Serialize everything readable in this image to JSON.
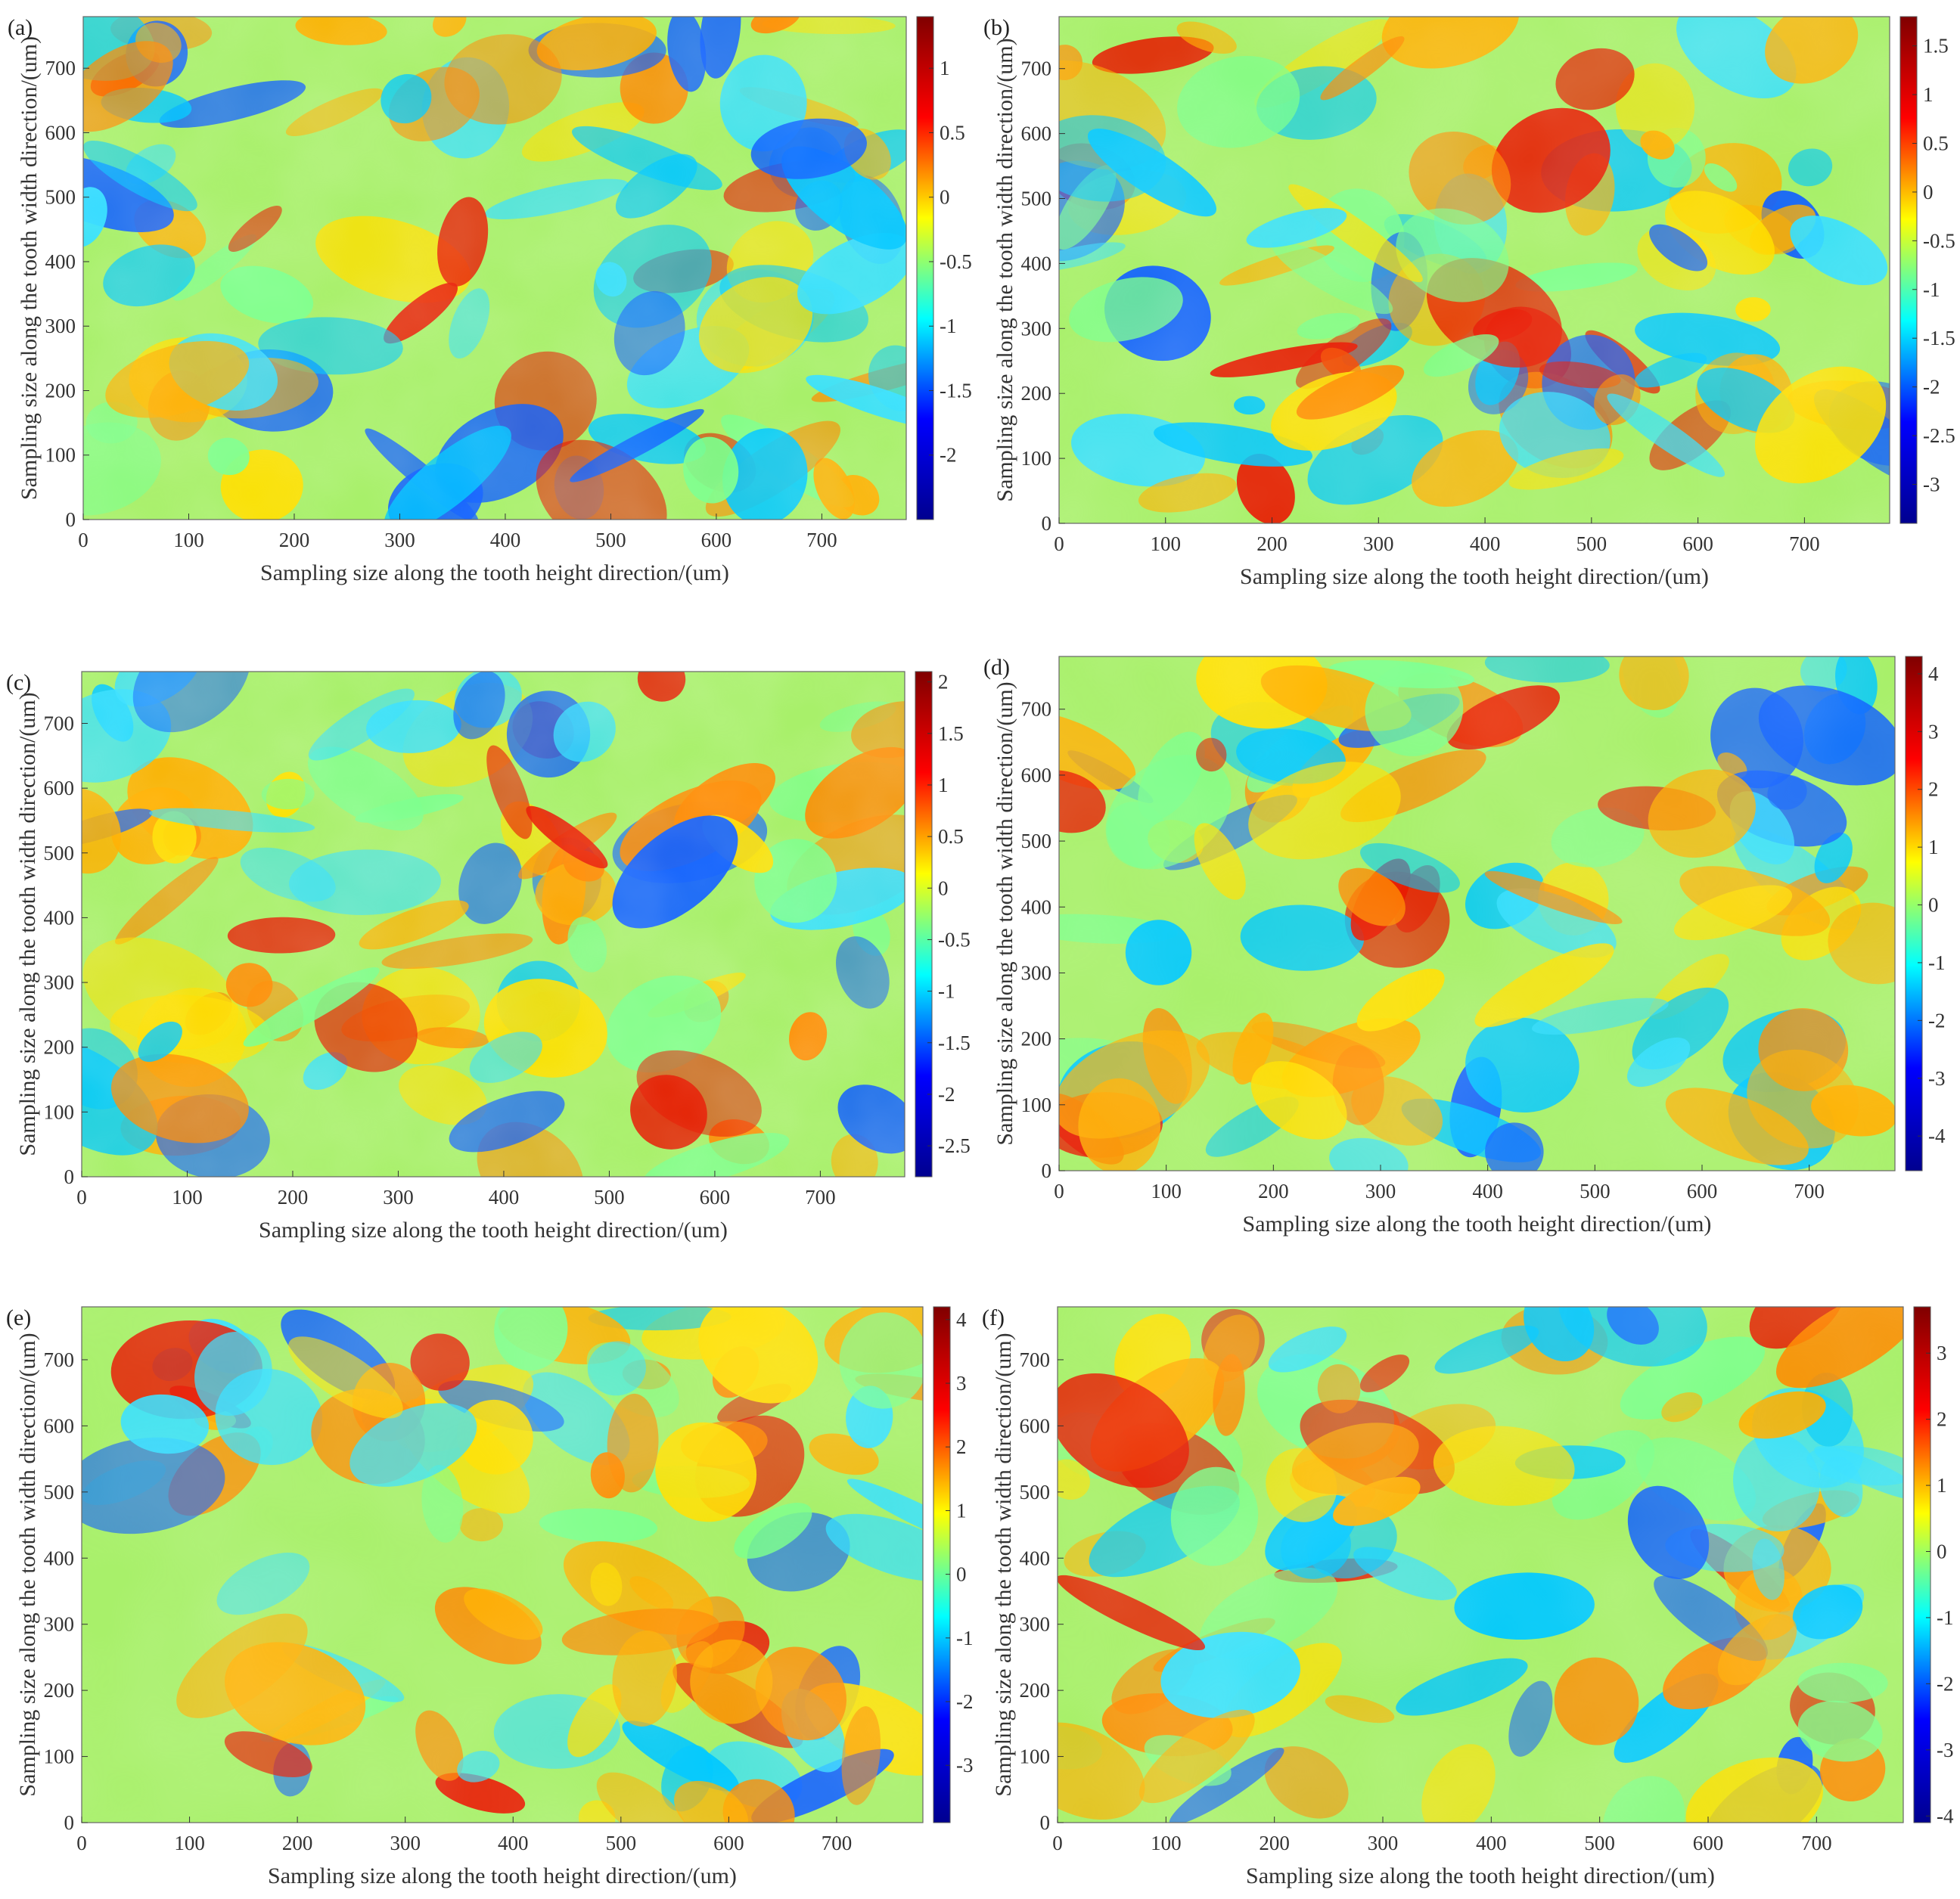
{
  "colormap": [
    "#00008f",
    "#0000ff",
    "#00ffff",
    "#ffff00",
    "#ff0000",
    "#800000"
  ],
  "chart_data": [
    {
      "type": "heatmap",
      "panel_label": "(a)",
      "xlabel": "Sampling size along the tooth height direction/(um)",
      "ylabel": "Sampling size along the tooth width direction/(um)",
      "xlim": [
        0,
        780
      ],
      "ylim": [
        0,
        780
      ],
      "x_ticks": [
        0,
        100,
        200,
        300,
        400,
        500,
        600,
        700
      ],
      "y_ticks": [
        0,
        100,
        200,
        300,
        400,
        500,
        600,
        700
      ],
      "colorbar": {
        "min": -2.5,
        "max": 1.4,
        "ticks": [
          "1",
          "0.5",
          "0",
          "-0.5",
          "-1",
          "-1.5",
          "-2"
        ],
        "tick_values": [
          1,
          0.5,
          0,
          -0.5,
          -1,
          -1.5,
          -2
        ]
      }
    },
    {
      "type": "heatmap",
      "panel_label": "(b)",
      "xlabel": "Sampling size along the tooth height direction/(um)",
      "ylabel": "Sampling size along the tooth width direction/(um)",
      "xlim": [
        0,
        780
      ],
      "ylim": [
        0,
        780
      ],
      "x_ticks": [
        0,
        100,
        200,
        300,
        400,
        500,
        600,
        700
      ],
      "y_ticks": [
        0,
        100,
        200,
        300,
        400,
        500,
        600,
        700
      ],
      "colorbar": {
        "min": -3.4,
        "max": 1.8,
        "ticks": [
          "1.5",
          "1",
          "0.5",
          "0",
          "-0.5",
          "-1",
          "-1.5",
          "-2",
          "-2.5",
          "-3"
        ],
        "tick_values": [
          1.5,
          1,
          0.5,
          0,
          -0.5,
          -1,
          -1.5,
          -2,
          -2.5,
          -3
        ]
      }
    },
    {
      "type": "heatmap",
      "panel_label": "(c)",
      "xlabel": "Sampling size along the tooth height direction/(um)",
      "ylabel": "Sampling size along the tooth width direction/(um)",
      "xlim": [
        0,
        780
      ],
      "ylim": [
        0,
        780
      ],
      "x_ticks": [
        0,
        100,
        200,
        300,
        400,
        500,
        600,
        700
      ],
      "y_ticks": [
        0,
        100,
        200,
        300,
        400,
        500,
        600,
        700
      ],
      "colorbar": {
        "min": -2.8,
        "max": 2.1,
        "ticks": [
          "2",
          "1.5",
          "1",
          "0.5",
          "0",
          "-0.5",
          "-1",
          "-1.5",
          "-2",
          "-2.5"
        ],
        "tick_values": [
          2,
          1.5,
          1,
          0.5,
          0,
          -0.5,
          -1,
          -1.5,
          -2,
          -2.5
        ]
      }
    },
    {
      "type": "heatmap",
      "panel_label": "(d)",
      "xlabel": "Sampling size along the tooth height direction/(um)",
      "ylabel": "Sampling size along the tooth width direction/(um)",
      "xlim": [
        0,
        780
      ],
      "ylim": [
        0,
        780
      ],
      "x_ticks": [
        0,
        100,
        200,
        300,
        400,
        500,
        600,
        700
      ],
      "y_ticks": [
        0,
        100,
        200,
        300,
        400,
        500,
        600,
        700
      ],
      "colorbar": {
        "min": -4.6,
        "max": 4.3,
        "ticks": [
          "4",
          "3",
          "2",
          "1",
          "0",
          "-1",
          "-2",
          "-3",
          "-4"
        ],
        "tick_values": [
          4,
          3,
          2,
          1,
          0,
          -1,
          -2,
          -3,
          -4
        ]
      }
    },
    {
      "type": "heatmap",
      "panel_label": "(e)",
      "xlabel": "Sampling size along the tooth height direction/(um)",
      "ylabel": "Sampling size along the tooth width direction/(um)",
      "xlim": [
        0,
        780
      ],
      "ylim": [
        0,
        780
      ],
      "x_ticks": [
        0,
        100,
        200,
        300,
        400,
        500,
        600,
        700
      ],
      "y_ticks": [
        0,
        100,
        200,
        300,
        400,
        500,
        600,
        700
      ],
      "colorbar": {
        "min": -3.9,
        "max": 4.2,
        "ticks": [
          "4",
          "3",
          "2",
          "1",
          "0",
          "-1",
          "-2",
          "-3"
        ],
        "tick_values": [
          4,
          3,
          2,
          1,
          0,
          -1,
          -2,
          -3
        ]
      }
    },
    {
      "type": "heatmap",
      "panel_label": "(f)",
      "xlabel": "Sampling size along the tooth height direction/(um)",
      "ylabel": "Sampling size along the tooth width direction/(um)",
      "xlim": [
        0,
        780
      ],
      "ylim": [
        0,
        780
      ],
      "x_ticks": [
        0,
        100,
        200,
        300,
        400,
        500,
        600,
        700
      ],
      "y_ticks": [
        0,
        100,
        200,
        300,
        400,
        500,
        600,
        700
      ],
      "colorbar": {
        "min": -4.1,
        "max": 3.7,
        "ticks": [
          "3",
          "2",
          "1",
          "0",
          "-1",
          "-2",
          "-3",
          "-4"
        ],
        "tick_values": [
          3,
          2,
          1,
          0,
          -1,
          -2,
          -3,
          -4
        ]
      }
    }
  ]
}
